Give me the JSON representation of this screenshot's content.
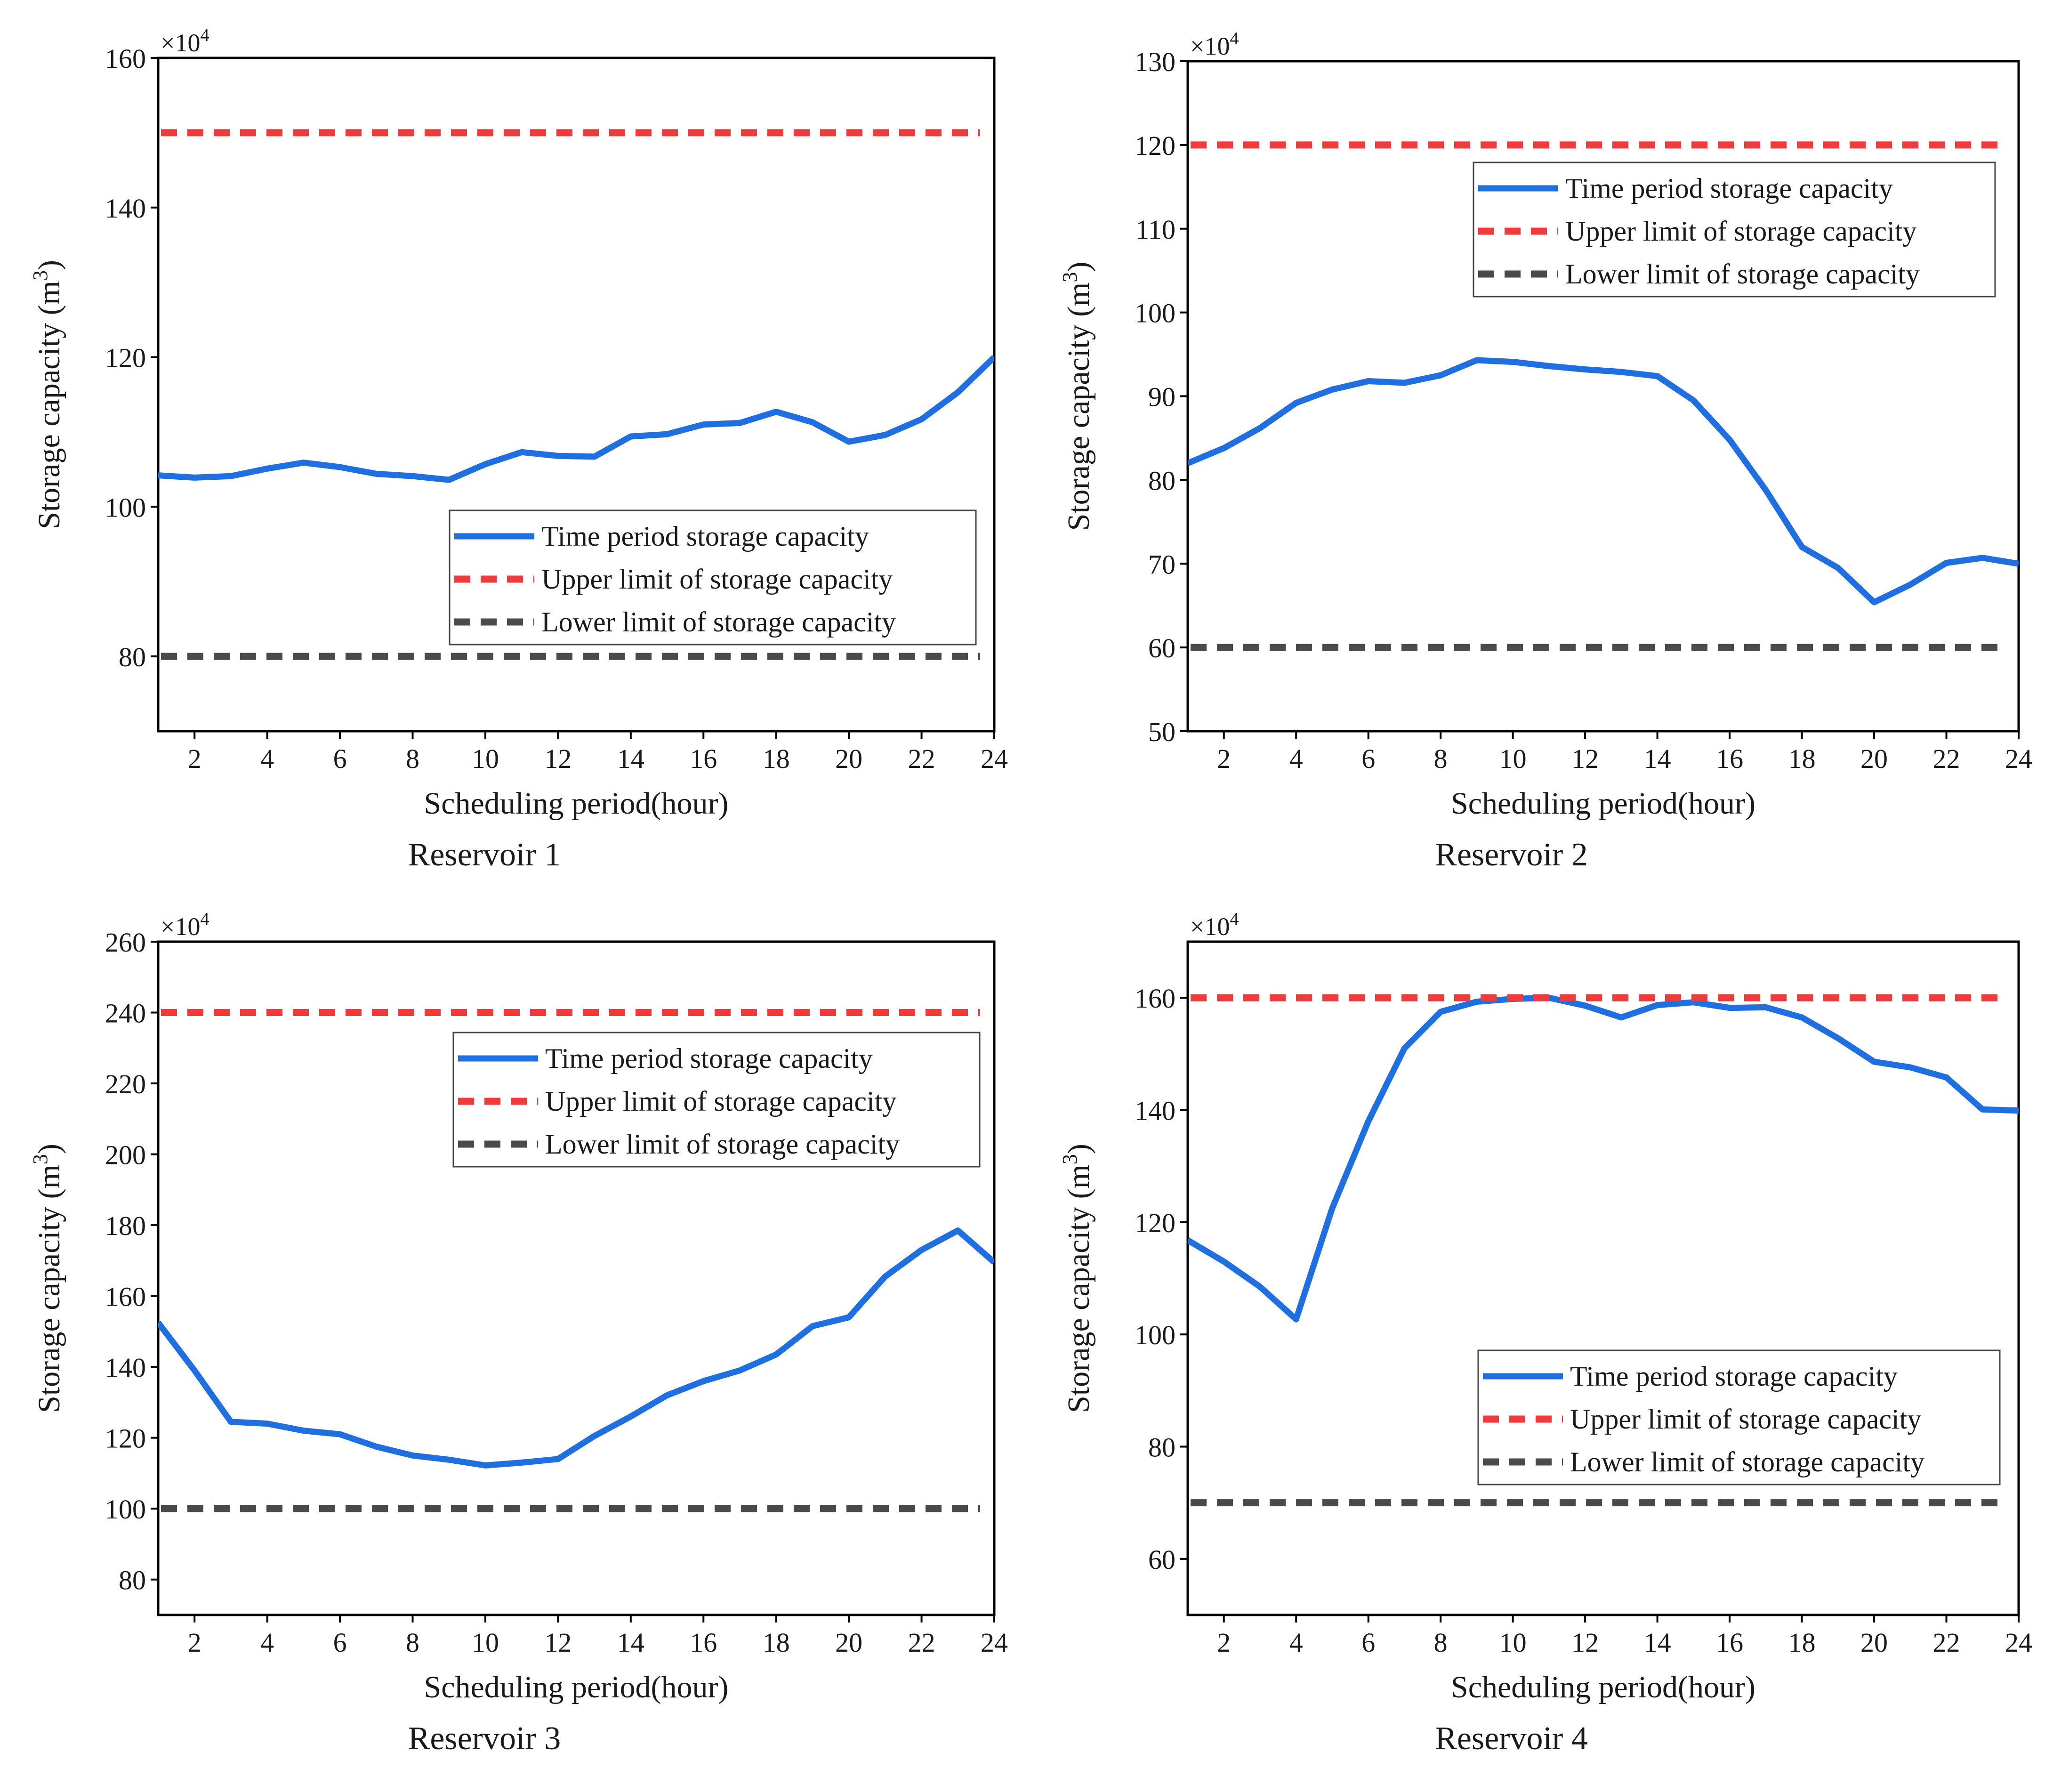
{
  "colors": {
    "series": "#1f6fe0",
    "upper": "#ef3b3b",
    "lower": "#4a4a4a",
    "axis": "#000000"
  },
  "chart_data": [
    {
      "type": "line",
      "title": "Reservoir 1",
      "xlabel": "Scheduling period(hour)",
      "ylabel": "Storage capacity (m3)",
      "ylabel_main": "Storage capacity (m",
      "ylabel_sup": "3",
      "ylabel_close": ")",
      "multiplier_base": "×10",
      "multiplier_exp": "4",
      "xlim": [
        1,
        24
      ],
      "ylim": [
        70,
        160
      ],
      "xticks": [
        2,
        4,
        6,
        8,
        10,
        12,
        14,
        16,
        18,
        20,
        22,
        24
      ],
      "yticks": [
        80,
        100,
        120,
        140,
        160
      ],
      "legend_loc": "center-right",
      "series": [
        {
          "name": "Time period storage capacity",
          "style": "solid",
          "x": [
            1,
            2,
            3,
            4,
            5,
            6,
            7,
            8,
            9,
            10,
            11,
            12,
            13,
            14,
            15,
            16,
            17,
            18,
            19,
            20,
            21,
            22,
            23,
            24
          ],
          "values": [
            104.2,
            103.9,
            104.1,
            105.1,
            105.9,
            105.3,
            104.4,
            104.1,
            103.6,
            105.7,
            107.3,
            106.8,
            106.7,
            109.4,
            109.7,
            111.0,
            111.2,
            112.7,
            111.3,
            108.7,
            109.6,
            111.7,
            115.3,
            120.0
          ]
        },
        {
          "name": "Upper limit of storage capacity",
          "style": "dashed",
          "value": 150
        },
        {
          "name": "Lower limit of storage capacity",
          "style": "dashed",
          "value": 80
        }
      ]
    },
    {
      "type": "line",
      "title": "Reservoir 2",
      "xlabel": "Scheduling period(hour)",
      "ylabel": "Storage capacity (m3)",
      "ylabel_main": "Storage capacity (m",
      "ylabel_sup": "3",
      "ylabel_close": ")",
      "multiplier_base": "×10",
      "multiplier_exp": "4",
      "xlim": [
        1,
        24
      ],
      "ylim": [
        50,
        130
      ],
      "xticks": [
        2,
        4,
        6,
        8,
        10,
        12,
        14,
        16,
        18,
        20,
        22,
        24
      ],
      "yticks": [
        50,
        60,
        70,
        80,
        90,
        100,
        110,
        120,
        130
      ],
      "legend_loc": "upper-right",
      "series": [
        {
          "name": "Time period storage capacity",
          "style": "solid",
          "x": [
            1,
            2,
            3,
            4,
            5,
            6,
            7,
            8,
            9,
            10,
            11,
            12,
            13,
            14,
            15,
            16,
            17,
            18,
            19,
            20,
            21,
            22,
            23,
            24
          ],
          "values": [
            82.0,
            83.8,
            86.2,
            89.2,
            90.8,
            91.8,
            91.6,
            92.5,
            94.3,
            94.1,
            93.6,
            93.2,
            92.9,
            92.4,
            89.5,
            84.8,
            78.8,
            72.0,
            69.5,
            65.4,
            67.5,
            70.1,
            70.7,
            70.0
          ]
        },
        {
          "name": "Upper limit of storage capacity",
          "style": "dashed",
          "value": 120
        },
        {
          "name": "Lower limit of storage capacity",
          "style": "dashed",
          "value": 60
        }
      ]
    },
    {
      "type": "line",
      "title": "Reservoir 3",
      "xlabel": "Scheduling period(hour)",
      "ylabel": "Storage capacity (m3)",
      "ylabel_main": "Storage capacity (m",
      "ylabel_sup": "3",
      "ylabel_close": ")",
      "multiplier_base": "×10",
      "multiplier_exp": "4",
      "xlim": [
        1,
        24
      ],
      "ylim": [
        70,
        260
      ],
      "xticks": [
        2,
        4,
        6,
        8,
        10,
        12,
        14,
        16,
        18,
        20,
        22,
        24
      ],
      "yticks": [
        80,
        100,
        120,
        140,
        160,
        180,
        200,
        220,
        240,
        260
      ],
      "legend_loc": "upper-right",
      "series": [
        {
          "name": "Time period storage capacity",
          "style": "solid",
          "x": [
            1,
            2,
            3,
            4,
            5,
            6,
            7,
            8,
            9,
            10,
            11,
            12,
            13,
            14,
            15,
            16,
            17,
            18,
            19,
            20,
            21,
            22,
            23,
            24
          ],
          "values": [
            152.5,
            139.0,
            124.5,
            124.0,
            122.0,
            121.0,
            117.5,
            115.0,
            113.8,
            112.2,
            113.0,
            114.0,
            120.5,
            126.0,
            132.0,
            136.0,
            139.0,
            143.5,
            151.5,
            154.0,
            165.5,
            173.0,
            178.5,
            169.5
          ]
        },
        {
          "name": "Upper limit of storage capacity",
          "style": "dashed",
          "value": 240
        },
        {
          "name": "Lower limit of storage capacity",
          "style": "dashed",
          "value": 100
        }
      ]
    },
    {
      "type": "line",
      "title": "Reservoir 4",
      "xlabel": "Scheduling period(hour)",
      "ylabel": "Storage capacity (m3)",
      "ylabel_main": "Storage capacity (m",
      "ylabel_sup": "3",
      "ylabel_close": ")",
      "multiplier_base": "×10",
      "multiplier_exp": "4",
      "xlim": [
        1,
        24
      ],
      "ylim": [
        50,
        170
      ],
      "xticks": [
        2,
        4,
        6,
        8,
        10,
        12,
        14,
        16,
        18,
        20,
        22,
        24
      ],
      "yticks": [
        60,
        80,
        100,
        120,
        140,
        160
      ],
      "legend_loc": "lower-right",
      "series": [
        {
          "name": "Time period storage capacity",
          "style": "solid",
          "x": [
            1,
            2,
            3,
            4,
            5,
            6,
            7,
            8,
            9,
            10,
            11,
            12,
            13,
            14,
            15,
            16,
            17,
            18,
            19,
            20,
            21,
            22,
            23,
            24
          ],
          "values": [
            116.8,
            113.0,
            108.5,
            102.7,
            122.5,
            138.0,
            151.0,
            157.5,
            159.3,
            159.8,
            160.0,
            158.6,
            156.5,
            158.7,
            159.2,
            158.2,
            158.3,
            156.5,
            152.8,
            148.6,
            147.6,
            145.8,
            140.1,
            139.9
          ]
        },
        {
          "name": "Upper limit of storage capacity",
          "style": "dashed",
          "value": 160
        },
        {
          "name": "Lower limit of storage capacity",
          "style": "dashed",
          "value": 70
        }
      ]
    }
  ]
}
